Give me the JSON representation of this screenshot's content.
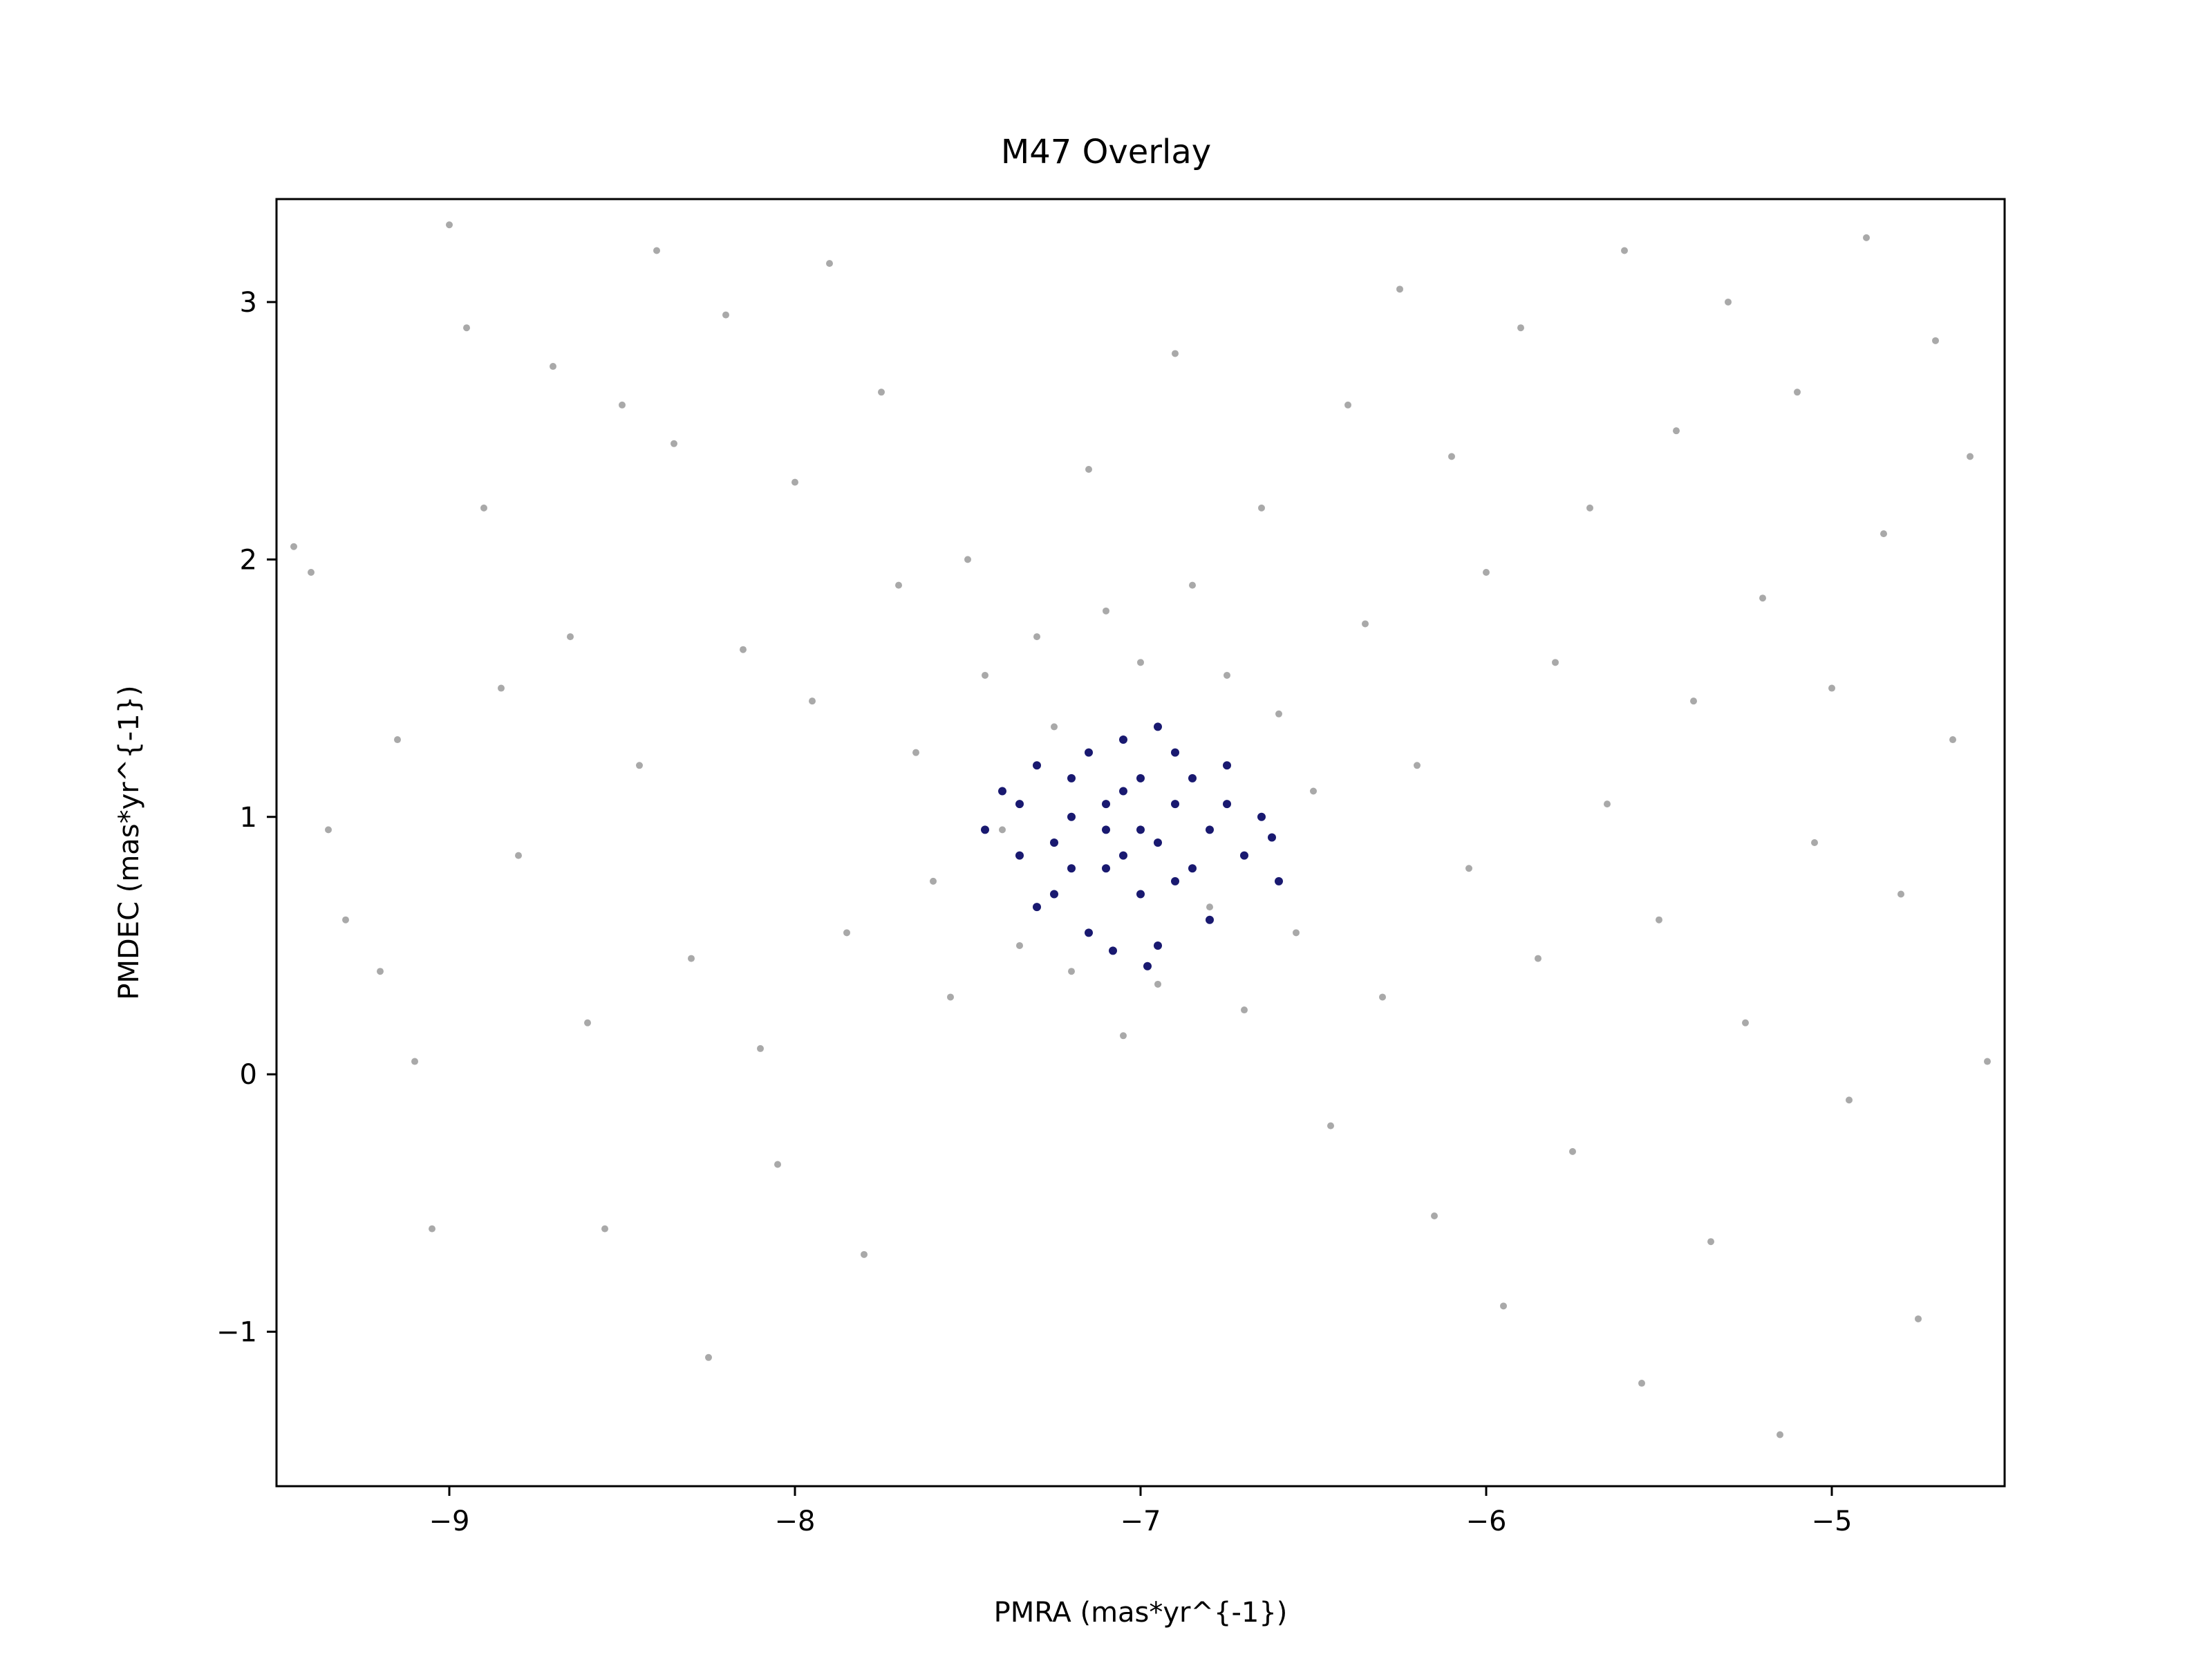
{
  "chart_data": {
    "type": "scatter",
    "title": "M47 Overlay",
    "xlabel": "PMRA (mas*yr^{-1})",
    "ylabel": "PMDEC (mas*yr^{-1})",
    "xlim": [
      -9.5,
      -4.5
    ],
    "ylim": [
      -1.6,
      3.4
    ],
    "xticks": [
      -9,
      -8,
      -7,
      -6,
      -5
    ],
    "yticks": [
      -1,
      0,
      1,
      2,
      3
    ],
    "xtick_labels": [
      "−9",
      "−8",
      "−7",
      "−6",
      "−5"
    ],
    "ytick_labels": [
      "−1",
      "0",
      "1",
      "2",
      "3"
    ],
    "grid": false,
    "series": [
      {
        "color": "#a9a9a9",
        "points": [
          [
            -9.45,
            2.05
          ],
          [
            -9.4,
            1.95
          ],
          [
            -9.35,
            0.95
          ],
          [
            -9.3,
            0.6
          ],
          [
            -9.2,
            0.4
          ],
          [
            -9.15,
            1.3
          ],
          [
            -9.1,
            0.05
          ],
          [
            -9.05,
            -0.6
          ],
          [
            -9.0,
            3.3
          ],
          [
            -8.95,
            2.9
          ],
          [
            -8.9,
            2.2
          ],
          [
            -8.85,
            1.5
          ],
          [
            -8.8,
            0.85
          ],
          [
            -8.7,
            2.75
          ],
          [
            -8.65,
            1.7
          ],
          [
            -8.6,
            0.2
          ],
          [
            -8.55,
            -0.6
          ],
          [
            -8.5,
            2.6
          ],
          [
            -8.45,
            1.2
          ],
          [
            -8.4,
            3.2
          ],
          [
            -8.35,
            2.45
          ],
          [
            -8.3,
            0.45
          ],
          [
            -8.25,
            -1.1
          ],
          [
            -8.2,
            2.95
          ],
          [
            -8.15,
            1.65
          ],
          [
            -8.1,
            0.1
          ],
          [
            -8.05,
            -0.35
          ],
          [
            -8.0,
            2.3
          ],
          [
            -7.95,
            1.45
          ],
          [
            -7.9,
            3.15
          ],
          [
            -7.85,
            0.55
          ],
          [
            -7.8,
            -0.7
          ],
          [
            -7.75,
            2.65
          ],
          [
            -7.7,
            1.9
          ],
          [
            -7.65,
            1.25
          ],
          [
            -7.6,
            0.75
          ],
          [
            -7.55,
            0.3
          ],
          [
            -7.5,
            2.0
          ],
          [
            -7.45,
            1.55
          ],
          [
            -7.4,
            0.95
          ],
          [
            -7.35,
            0.5
          ],
          [
            -7.3,
            1.7
          ],
          [
            -7.25,
            1.35
          ],
          [
            -7.2,
            0.4
          ],
          [
            -7.15,
            2.35
          ],
          [
            -7.1,
            1.8
          ],
          [
            -7.05,
            0.15
          ],
          [
            -7.0,
            1.6
          ],
          [
            -6.95,
            0.35
          ],
          [
            -6.9,
            2.8
          ],
          [
            -6.85,
            1.9
          ],
          [
            -6.8,
            0.65
          ],
          [
            -6.75,
            1.55
          ],
          [
            -6.7,
            0.25
          ],
          [
            -6.65,
            2.2
          ],
          [
            -6.6,
            1.4
          ],
          [
            -6.55,
            0.55
          ],
          [
            -6.5,
            1.1
          ],
          [
            -6.45,
            -0.2
          ],
          [
            -6.4,
            2.6
          ],
          [
            -6.35,
            1.75
          ],
          [
            -6.3,
            0.3
          ],
          [
            -6.25,
            3.05
          ],
          [
            -6.2,
            1.2
          ],
          [
            -6.15,
            -0.55
          ],
          [
            -6.1,
            2.4
          ],
          [
            -6.05,
            0.8
          ],
          [
            -6.0,
            1.95
          ],
          [
            -5.95,
            -0.9
          ],
          [
            -5.9,
            2.9
          ],
          [
            -5.85,
            0.45
          ],
          [
            -5.8,
            1.6
          ],
          [
            -5.75,
            -0.3
          ],
          [
            -5.7,
            2.2
          ],
          [
            -5.65,
            1.05
          ],
          [
            -5.6,
            3.2
          ],
          [
            -5.55,
            -1.2
          ],
          [
            -5.5,
            0.6
          ],
          [
            -5.45,
            2.5
          ],
          [
            -5.4,
            1.45
          ],
          [
            -5.35,
            -0.65
          ],
          [
            -5.3,
            3.0
          ],
          [
            -5.25,
            0.2
          ],
          [
            -5.2,
            1.85
          ],
          [
            -5.15,
            -1.4
          ],
          [
            -5.1,
            2.65
          ],
          [
            -5.05,
            0.9
          ],
          [
            -5.0,
            1.5
          ],
          [
            -4.95,
            -0.1
          ],
          [
            -4.9,
            3.25
          ],
          [
            -4.85,
            2.1
          ],
          [
            -4.8,
            0.7
          ],
          [
            -4.75,
            -0.95
          ],
          [
            -4.7,
            2.85
          ],
          [
            -4.65,
            1.3
          ],
          [
            -4.6,
            2.4
          ],
          [
            -4.55,
            0.05
          ]
        ]
      },
      {
        "color": "#191970",
        "points": [
          [
            -7.45,
            0.95
          ],
          [
            -7.4,
            1.1
          ],
          [
            -7.35,
            0.85
          ],
          [
            -7.3,
            1.2
          ],
          [
            -7.25,
            0.7
          ],
          [
            -7.2,
            1.0
          ],
          [
            -7.15,
            1.25
          ],
          [
            -7.1,
            0.8
          ],
          [
            -7.05,
            1.3
          ],
          [
            -7.0,
            0.95
          ],
          [
            -6.95,
            1.35
          ],
          [
            -6.9,
            0.75
          ],
          [
            -6.85,
            1.15
          ],
          [
            -6.8,
            0.6
          ],
          [
            -6.75,
            1.05
          ],
          [
            -6.7,
            0.85
          ],
          [
            -6.65,
            1.0
          ],
          [
            -6.6,
            0.75
          ],
          [
            -7.3,
            0.65
          ],
          [
            -7.2,
            1.15
          ],
          [
            -7.1,
            1.05
          ],
          [
            -7.0,
            0.7
          ],
          [
            -6.9,
            1.25
          ],
          [
            -6.8,
            0.95
          ],
          [
            -7.15,
            0.55
          ],
          [
            -7.05,
            0.85
          ],
          [
            -6.95,
            0.5
          ],
          [
            -7.25,
            0.9
          ],
          [
            -7.35,
            1.05
          ],
          [
            -6.85,
            0.8
          ],
          [
            -6.75,
            1.2
          ],
          [
            -7.0,
            1.15
          ],
          [
            -6.9,
            1.05
          ],
          [
            -7.1,
            0.95
          ],
          [
            -7.2,
            0.8
          ],
          [
            -6.95,
            0.9
          ],
          [
            -7.05,
            1.1
          ],
          [
            -6.98,
            0.42
          ],
          [
            -7.08,
            0.48
          ],
          [
            -6.62,
            0.92
          ]
        ]
      }
    ]
  }
}
